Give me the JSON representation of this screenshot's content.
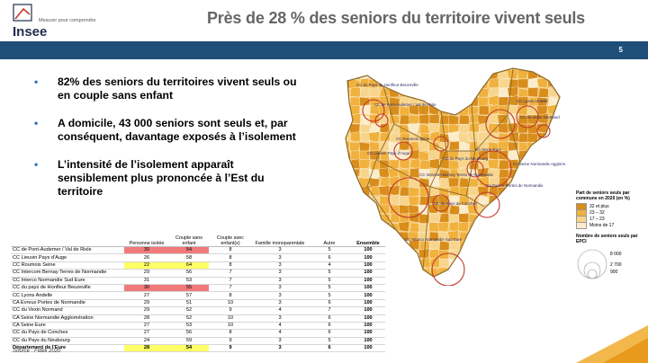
{
  "header": {
    "logo_text": "Insee",
    "logo_tagline": "Mesurer pour comprendre",
    "title": "Près de 28 % des seniors du territoire vivent seuls",
    "page_number": "5"
  },
  "bullets": [
    "82% des seniors du territoires vivent seuls ou en couple sans enfant",
    "A domicile, 43 000 seniors sont seuls et, par conséquent, davantage exposés à l’isolement",
    "L’intensité de l’isolement apparaît sensiblement plus prononcée à l’Est du territoire"
  ],
  "table": {
    "headers": [
      "Personne isolée",
      "Couple sans enfant",
      "Couple avec enfant(s)",
      "Famille monoparentale",
      "Autre",
      "Ensemble"
    ],
    "rows": [
      {
        "name": "CC de Pont-Audemer / Val de Risle",
        "v": [
          "30",
          "54",
          "8",
          "3",
          "5",
          "100"
        ]
      },
      {
        "name": "CC Lieuvin Pays d'Auge",
        "v": [
          "26",
          "58",
          "8",
          "3",
          "6",
          "100"
        ]
      },
      {
        "name": "CC Roumois Seine",
        "v": [
          "22",
          "64",
          "8",
          "3",
          "4",
          "100"
        ]
      },
      {
        "name": "CC Intercom Bernay Terres de Normandie",
        "v": [
          "29",
          "56",
          "7",
          "3",
          "5",
          "100"
        ]
      },
      {
        "name": "CC Interco Normandie Sud Eure",
        "v": [
          "31",
          "53",
          "7",
          "3",
          "5",
          "100"
        ]
      },
      {
        "name": "CC du pays de Honfleur Beuzeville",
        "v": [
          "30",
          "55",
          "7",
          "3",
          "5",
          "100"
        ]
      },
      {
        "name": "CC Lyons Andelle",
        "v": [
          "27",
          "57",
          "8",
          "3",
          "5",
          "100"
        ]
      },
      {
        "name": "CA Evreux Portes de Normandie",
        "v": [
          "29",
          "51",
          "10",
          "3",
          "6",
          "100"
        ]
      },
      {
        "name": "CC du Vexin Normand",
        "v": [
          "29",
          "52",
          "9",
          "4",
          "7",
          "100"
        ]
      },
      {
        "name": "CA Seine Normandie Agglomération",
        "v": [
          "28",
          "52",
          "10",
          "3",
          "6",
          "100"
        ]
      },
      {
        "name": "CA Seine Eure",
        "v": [
          "27",
          "53",
          "10",
          "4",
          "6",
          "100"
        ]
      },
      {
        "name": "CC du Pays de Conches",
        "v": [
          "27",
          "56",
          "8",
          "4",
          "6",
          "100"
        ]
      },
      {
        "name": "CC du Pays du Neubourg",
        "v": [
          "24",
          "59",
          "9",
          "3",
          "5",
          "100"
        ]
      },
      {
        "name": "Département de l'Eure",
        "v": [
          "28",
          "54",
          "9",
          "3",
          "6",
          "100"
        ]
      }
    ]
  },
  "highlight_colors": {
    "red": "#f07a7a",
    "yellow": "#ffff66"
  },
  "source": "Source : Fideli 2020",
  "map": {
    "labels": [
      "CC du Pays de Honfleur-Beuzeville",
      "CC de Pont-Audemer / Val de Risle",
      "CC Roumois Seine",
      "CC Lieuvin Pays d'Auge",
      "CC Lyons Andelle",
      "CC du Vexin Normand",
      "CA Seine-Eure",
      "CC du Pays du Neubourg",
      "CC Intercom Bernay Terres de Normandie",
      "CA Seine Normandie Agglomération",
      "CA Evreux Portes de Normandie",
      "CC du Pays de Conches",
      "CC Interco Normandie Sud Eure"
    ],
    "legend_title": "Part de seniors seuls par commune en 2020 (en %)",
    "legend_classes": [
      {
        "label": "32 et plus",
        "color": "#d98d1a"
      },
      {
        "label": "23 – 32",
        "color": "#f0b13d"
      },
      {
        "label": "17 – 23",
        "color": "#f7d58c"
      },
      {
        "label": "Moins de 17",
        "color": "#fbeccc"
      }
    ],
    "circle_title": "Nombre de seniors seuls par EPCI",
    "circle_values": [
      "8 000",
      "2 700",
      "900"
    ]
  }
}
